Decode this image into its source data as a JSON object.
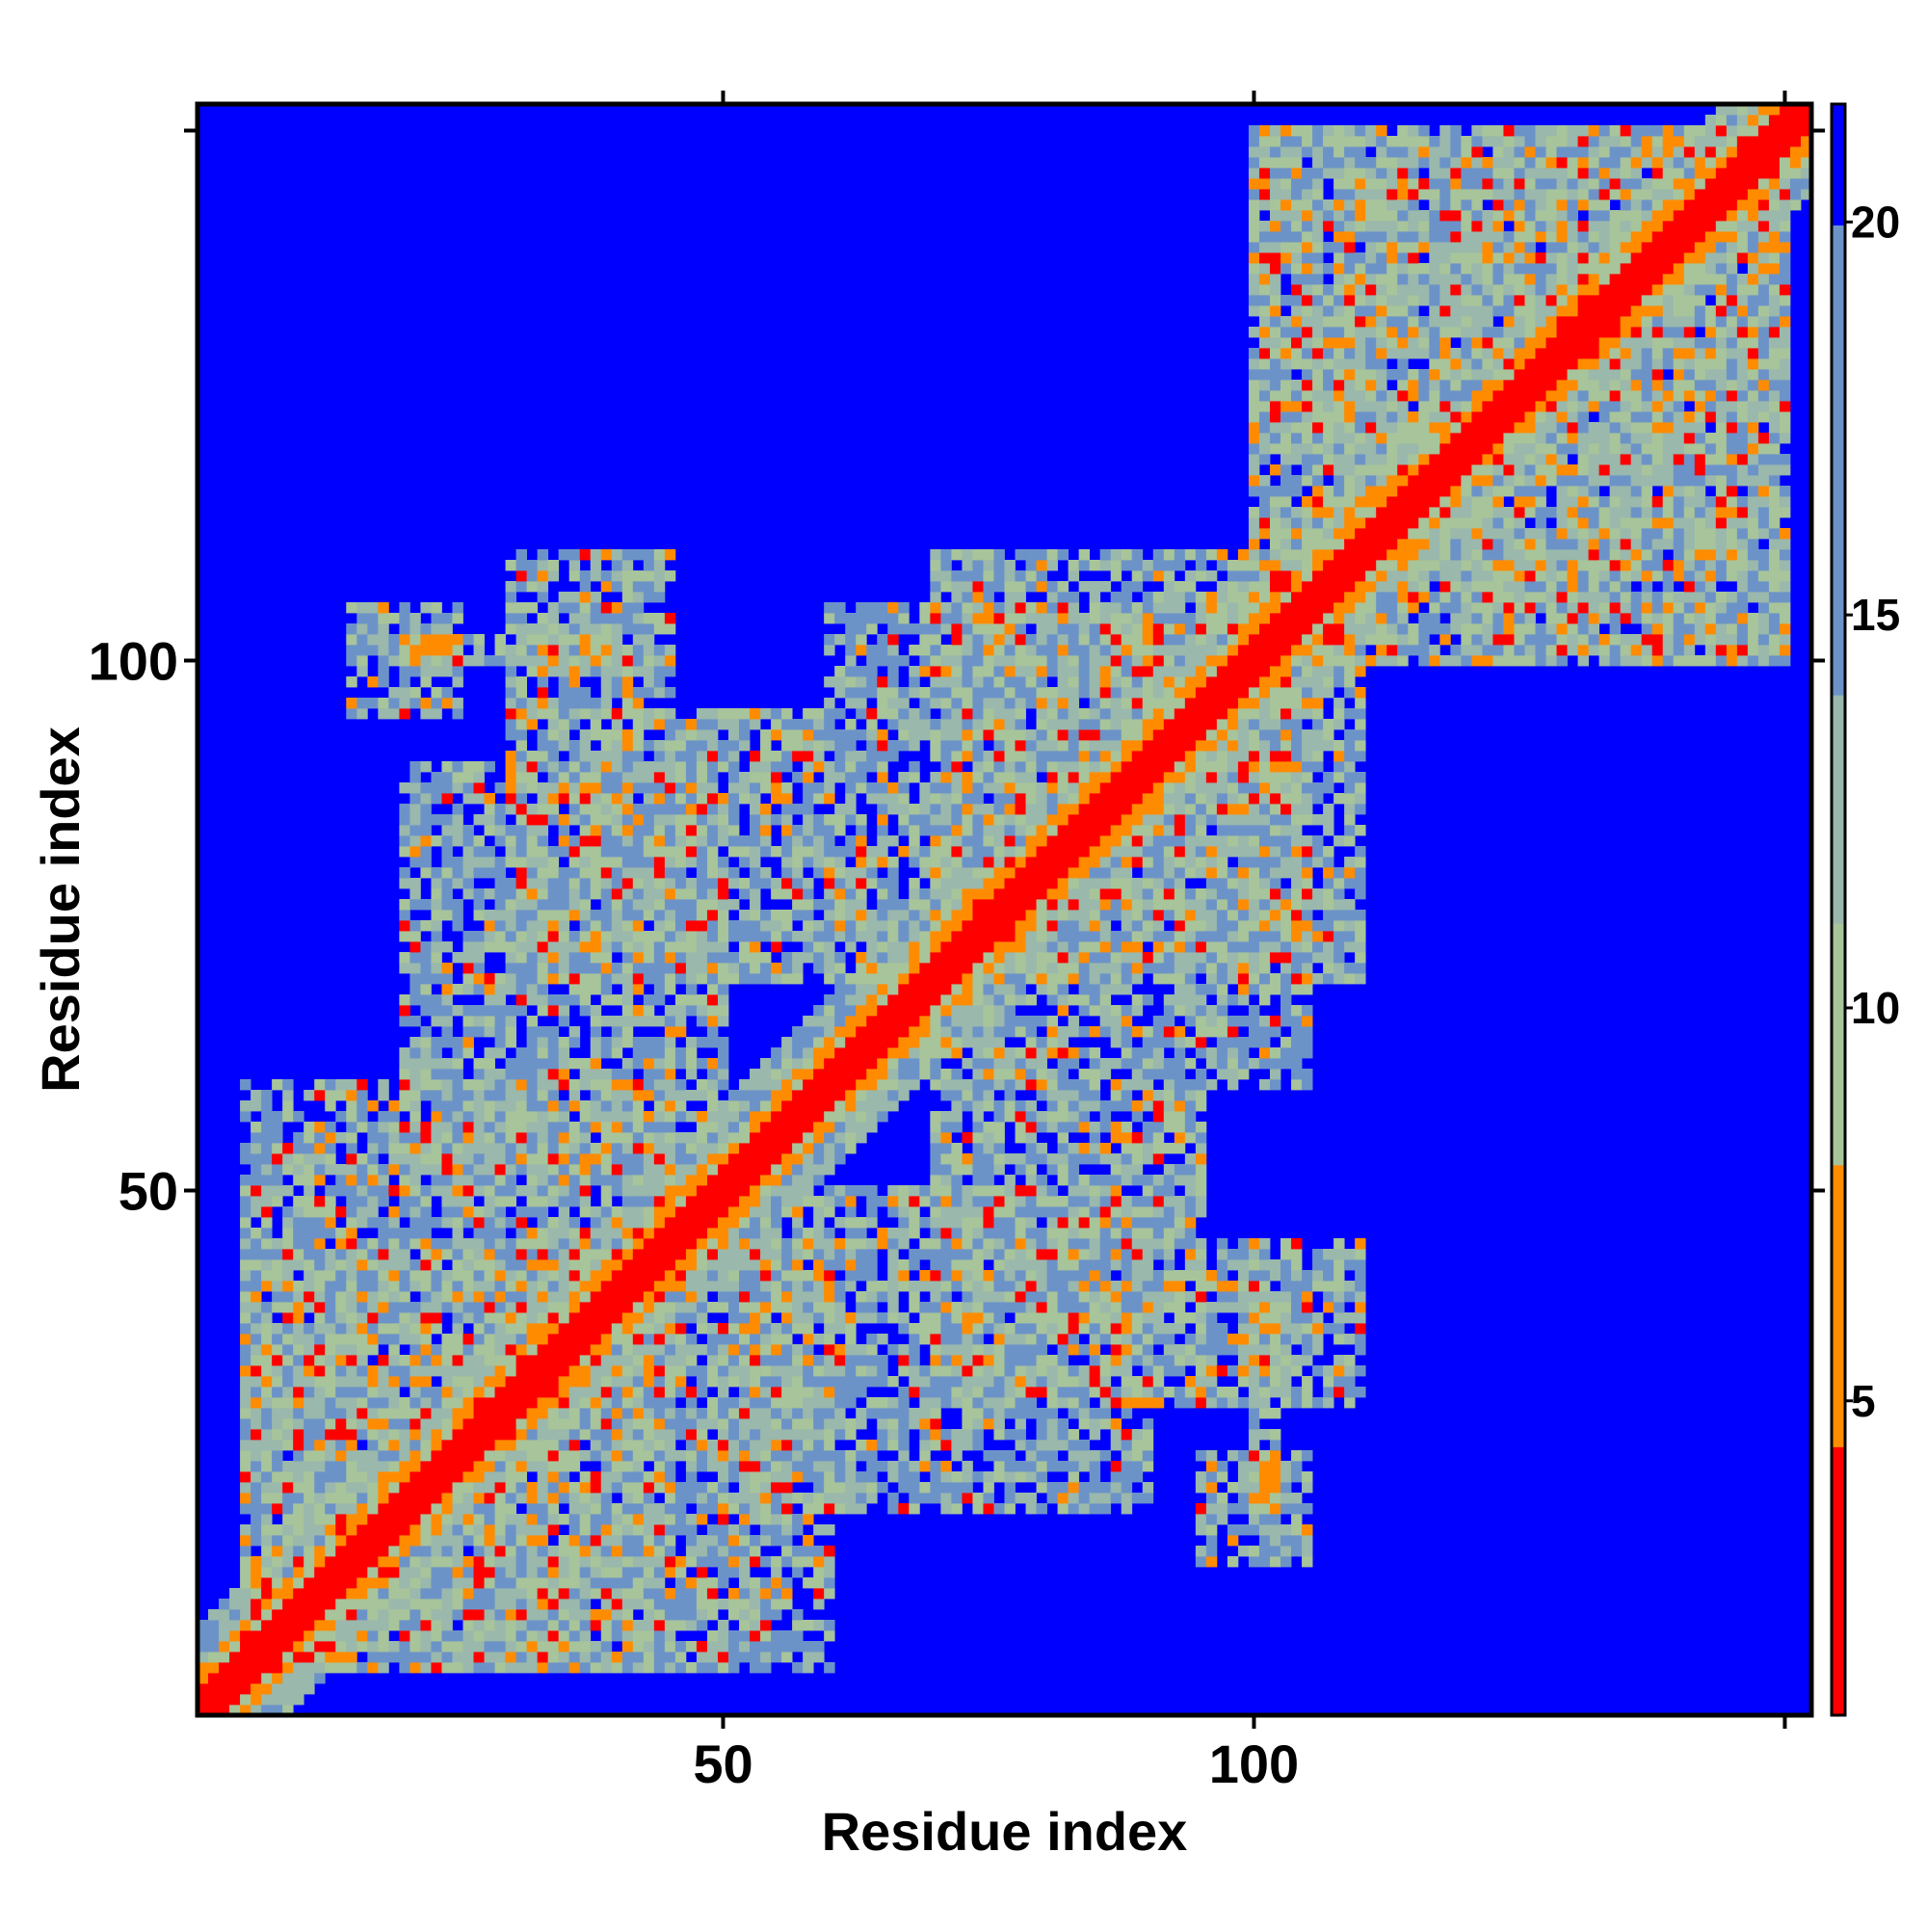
{
  "chart_data": {
    "type": "heatmap",
    "title": "",
    "xlabel": "Residue index",
    "ylabel": "Residue index",
    "n_residues": 152,
    "xlim": [
      0.5,
      152.5
    ],
    "ylim": [
      0.5,
      152.5
    ],
    "x_ticks": [
      50,
      100
    ],
    "y_ticks": [
      50,
      100
    ],
    "x_tick_labels": [
      "50",
      "100"
    ],
    "y_tick_labels": [
      "50",
      "100"
    ],
    "colorbar": {
      "range": [
        1,
        21.5
      ],
      "ticks": [
        5,
        10,
        15,
        20
      ],
      "tick_labels": [
        "5",
        "10",
        "15",
        "20"
      ]
    },
    "color_scale": [
      {
        "max": 4.5,
        "color": "#ff0000"
      },
      {
        "max": 8.0,
        "color": "#ff8c00"
      },
      {
        "max": 11.0,
        "color": "#a8c49a"
      },
      {
        "max": 14.0,
        "color": "#9ab8ac"
      },
      {
        "max": 20.0,
        "color": "#6c93c8"
      },
      {
        "max": 999,
        "color": "#0000ff"
      }
    ],
    "cutoff": 20,
    "background_value": 21,
    "structure": {
      "diagonal_band": 2,
      "local_blocks": [
        [
          1,
          152
        ]
      ],
      "contact_regions": [
        {
          "x": [
            20,
            40
          ],
          "y": [
            100,
            102
          ],
          "level": "strong"
        },
        {
          "x": [
            30,
            60
          ],
          "y": [
            70,
            95
          ],
          "level": "medium"
        },
        {
          "x": [
            5,
            45
          ],
          "y": [
            5,
            60
          ],
          "level": "medium"
        },
        {
          "x": [
            50,
            90
          ],
          "y": [
            20,
            50
          ],
          "level": "medium"
        },
        {
          "x": [
            95,
            110
          ],
          "y": [
            30,
            45
          ],
          "level": "medium"
        },
        {
          "x": [
            95,
            105
          ],
          "y": [
            15,
            25
          ],
          "level": "medium"
        },
        {
          "x": [
            70,
            105
          ],
          "y": [
            60,
            110
          ],
          "level": "medium"
        },
        {
          "x": [
            100,
            150
          ],
          "y": [
            100,
            150
          ],
          "level": "medium"
        }
      ]
    }
  }
}
